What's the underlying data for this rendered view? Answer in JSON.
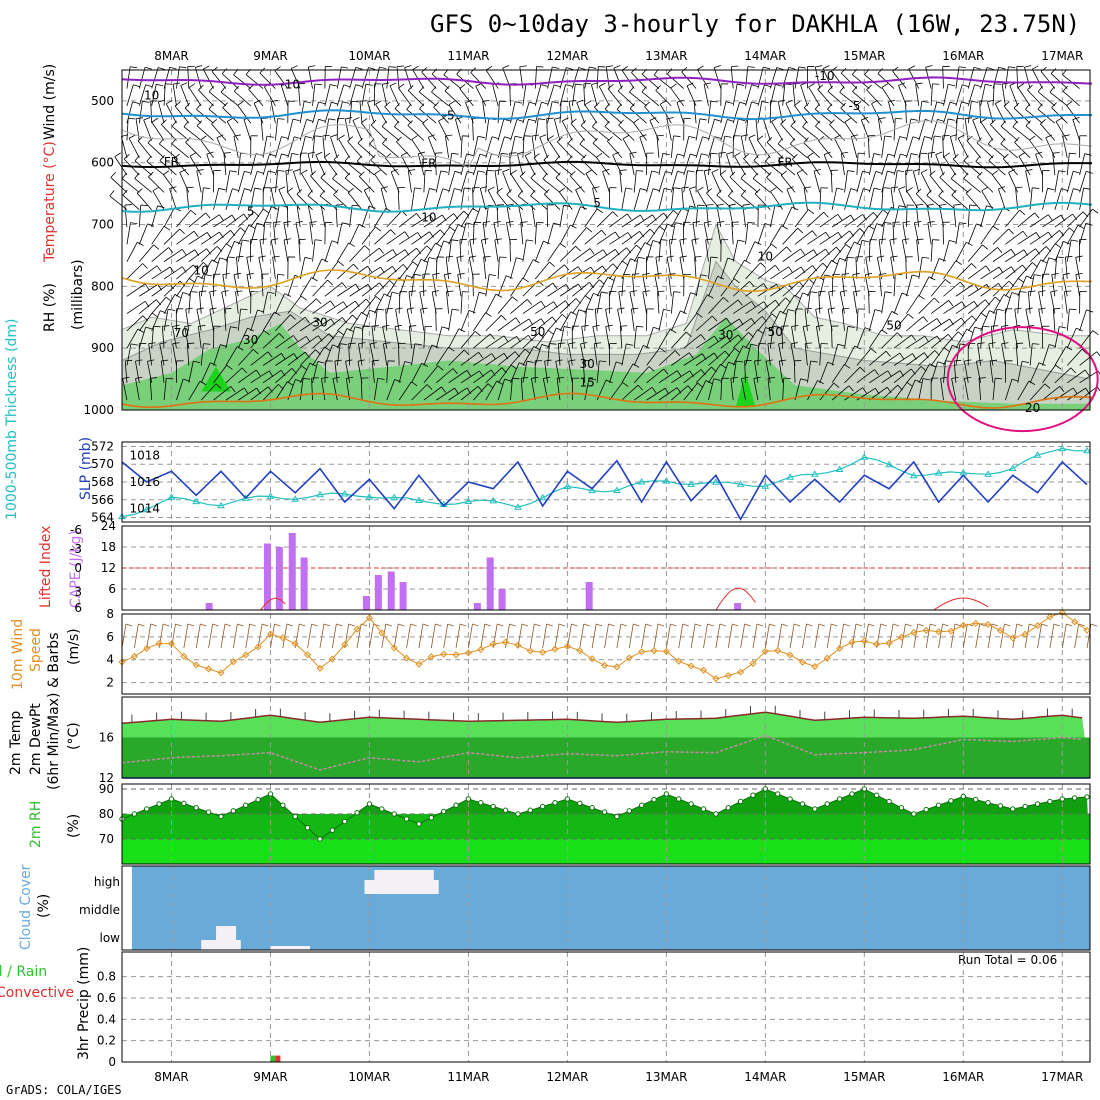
{
  "title": "GFS 0~10day 3-hourly for DAKHLA (16W, 23.75N)",
  "footer": "GrADS: COLA/IGES",
  "dates": [
    "8MAR",
    "9MAR",
    "10MAR",
    "11MAR",
    "12MAR",
    "13MAR",
    "14MAR",
    "15MAR",
    "16MAR",
    "17MAR"
  ],
  "colors": {
    "temp": "#e03030",
    "rh": "#30c030",
    "wind": "#000000",
    "thick": "#20c0c0",
    "slp": "#2040c0",
    "li": "#e03030",
    "cape": "#c070f0",
    "wind10": "#e09020",
    "cloud": "#6aaad8",
    "precip": "#30c030",
    "conv": "#e03030"
  },
  "panels": {
    "upper": {
      "labels": {
        "rh": "RH (%)",
        "temp": "Temperature (°C)",
        "wind": "Wind (m/s)",
        "units": "(millibars)"
      },
      "ticks": [
        "500",
        "600",
        "700",
        "800",
        "900",
        "1000"
      ],
      "contour_labels": [
        "-10",
        "-10",
        "-5",
        "-5",
        "FR",
        "FR",
        "FR",
        "5",
        "5",
        "10",
        "10",
        "15",
        "20",
        "10",
        "10",
        "30",
        "30",
        "30",
        "30",
        "50",
        "50",
        "50",
        "70"
      ]
    },
    "slp": {
      "labels": {
        "thick": "1000-500mb Thickness (dm)",
        "slp": "SLP (mb)"
      },
      "left_ticks": [
        "564",
        "566",
        "568",
        "570",
        "572"
      ],
      "right_ticks": [
        "1014",
        "1016",
        "1018"
      ]
    },
    "cape": {
      "labels": {
        "li": "Lifted Index",
        "cape": "CAPE (J/kg)"
      },
      "left_ticks": [
        "6",
        "3",
        "0",
        "-3",
        "-6"
      ],
      "right_ticks": [
        "6",
        "12",
        "18",
        "24"
      ]
    },
    "wind10": {
      "labels": {
        "a": "10m Wind",
        "b": "Speed",
        "c": "& Barbs",
        "units": "(m/s)"
      },
      "ticks": [
        "2",
        "4",
        "6",
        "8"
      ]
    },
    "temp2m": {
      "labels": {
        "a": "2m Temp",
        "b": "2m DewPt",
        "c": "(6hr Min/Max)",
        "units": "(°C)"
      },
      "ticks": [
        "12",
        "16"
      ]
    },
    "rh2m": {
      "labels": {
        "a": "2m RH",
        "units": "(%)"
      },
      "ticks": [
        "70",
        "80",
        "90"
      ]
    },
    "cloud": {
      "labels": {
        "a": "Cloud Cover",
        "units": "(%)"
      },
      "levels": [
        "high",
        "middle",
        "low"
      ]
    },
    "precip": {
      "labels": {
        "a": "Total / Rain",
        "b": "Convective",
        "c": "3hr Precip (mm)"
      },
      "ticks": [
        "0",
        "0.2",
        "0.4",
        "0.6",
        "0.8"
      ],
      "run_total": "Run Total = 0.06"
    }
  },
  "chart_data": [
    {
      "type": "line",
      "name": "2m Temp",
      "x_days": [
        7.5,
        8,
        8.5,
        9,
        9.5,
        10,
        10.5,
        11,
        11.5,
        12,
        12.5,
        13,
        13.5,
        14,
        14.5,
        15,
        15.5,
        16,
        16.5,
        17,
        17.3
      ],
      "values": [
        17.4,
        17.8,
        17.6,
        18.2,
        17.5,
        18.0,
        17.8,
        17.6,
        17.7,
        17.8,
        17.5,
        17.8,
        17.9,
        18.5,
        17.7,
        18.0,
        17.9,
        18.1,
        17.8,
        18.2,
        17.8
      ],
      "ylim": [
        12,
        20
      ]
    },
    {
      "type": "line",
      "name": "2m DewPt",
      "x_days": [
        7.5,
        8,
        8.5,
        9,
        9.5,
        10,
        10.5,
        11,
        11.5,
        12,
        12.5,
        13,
        13.5,
        14,
        14.5,
        15,
        15.5,
        16,
        16.5,
        17,
        17.3
      ],
      "values": [
        13.5,
        14.0,
        14.2,
        14.5,
        12.8,
        14.0,
        13.6,
        14.5,
        14.0,
        14.4,
        14.2,
        14.6,
        14.5,
        16.2,
        14.3,
        14.5,
        14.8,
        15.8,
        15.6,
        16.0,
        15.7
      ],
      "ylim": [
        12,
        20
      ]
    },
    {
      "type": "line",
      "name": "2m RH",
      "x_days": [
        7.5,
        8,
        8.5,
        9,
        9.5,
        10,
        10.5,
        11,
        11.5,
        12,
        12.5,
        13,
        13.5,
        14,
        14.5,
        15,
        15.5,
        16,
        16.5,
        17,
        17.3
      ],
      "values": [
        78,
        86,
        79,
        88,
        70,
        84,
        76,
        86,
        80,
        86,
        79,
        88,
        80,
        90,
        82,
        90,
        80,
        87,
        82,
        86,
        87
      ],
      "ylim": [
        60,
        92
      ]
    },
    {
      "type": "line",
      "name": "10m Wind Speed",
      "x_days": [
        7.5,
        8,
        8.5,
        9,
        9.5,
        10,
        10.5,
        11,
        11.5,
        12,
        12.5,
        13,
        13.5,
        14,
        14.5,
        15,
        15.5,
        16,
        16.5,
        17,
        17.3
      ],
      "values": [
        4.2,
        5.3,
        2.5,
        6.5,
        3.5,
        7.3,
        3.5,
        5.0,
        5.2,
        4.8,
        3.6,
        5.0,
        2.0,
        4.6,
        3.8,
        5.6,
        6.0,
        7.2,
        6.2,
        7.8,
        6.8
      ],
      "ylim": [
        1,
        8
      ]
    },
    {
      "type": "line",
      "name": "SLP",
      "x_days": [
        7.5,
        7.75,
        8,
        8.25,
        8.5,
        8.75,
        9,
        9.25,
        9.5,
        9.75,
        10,
        10.25,
        10.5,
        10.75,
        11,
        11.25,
        11.5,
        11.75,
        12,
        12.25,
        12.5,
        12.75,
        13,
        13.25,
        13.5,
        13.75,
        14,
        14.25,
        14.5,
        14.75,
        15,
        15.25,
        15.5,
        15.75,
        16,
        16.25,
        16.5,
        16.75,
        17,
        17.25
      ],
      "values": [
        1017.5,
        1016,
        1016.8,
        1015,
        1016.8,
        1014.8,
        1016.8,
        1015.2,
        1017,
        1014.5,
        1016.2,
        1014,
        1016.5,
        1014.2,
        1016,
        1015.5,
        1017.5,
        1014.2,
        1016.8,
        1015.5,
        1017.6,
        1014.5,
        1017.5,
        1014.6,
        1016.5,
        1013.2,
        1016.5,
        1014.5,
        1016.2,
        1014.5,
        1016.5,
        1015.5,
        1017.5,
        1014.5,
        1016.5,
        1014.5,
        1016.5,
        1015.2,
        1017.5,
        1015.8
      ],
      "ylim": [
        1013,
        1019
      ]
    },
    {
      "type": "line",
      "name": "1000-500mb Thickness",
      "x_days": [
        7.5,
        8,
        8.5,
        9,
        9.5,
        10,
        10.5,
        11,
        11.5,
        12,
        12.5,
        13,
        13.5,
        14,
        14.5,
        15,
        15.5,
        16,
        16.5,
        17,
        17.3
      ],
      "values": [
        564.2,
        566,
        565.6,
        566.3,
        566.4,
        566.6,
        565.7,
        565.8,
        565.4,
        567.2,
        567.2,
        568.2,
        567.7,
        567.8,
        568.8,
        570.6,
        569,
        568.8,
        569.5,
        572,
        571.5
      ],
      "ylim": [
        563.5,
        572.5
      ]
    },
    {
      "type": "bar",
      "name": "CAPE",
      "x_days": [
        8.38,
        8.97,
        9.09,
        9.22,
        9.34,
        9.97,
        10.09,
        10.22,
        10.34,
        11.09,
        11.22,
        11.34,
        12.22,
        13.72
      ],
      "values": [
        2,
        19,
        18,
        22,
        15,
        4,
        10,
        11,
        8,
        2,
        15,
        6,
        8,
        2
      ],
      "ylim": [
        0,
        24
      ]
    },
    {
      "type": "bar",
      "name": "3hr Precip Total",
      "x_days": [
        9.05
      ],
      "values": [
        0.06
      ],
      "ylim": [
        0,
        1
      ]
    }
  ]
}
